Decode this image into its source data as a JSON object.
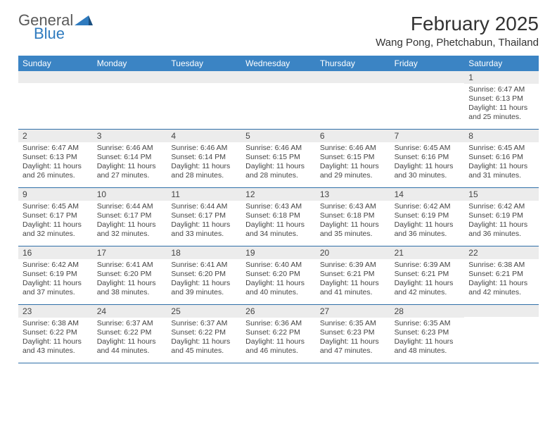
{
  "brand": {
    "general": "General",
    "blue": "Blue"
  },
  "logo_colors": {
    "triangle": "#2f7bbf",
    "accent": "#1a4f80"
  },
  "title": "February 2025",
  "location": "Wang Pong, Phetchabun, Thailand",
  "header_bg": "#3b84c4",
  "header_fg": "#ffffff",
  "row_divider": "#2f6fa8",
  "daynum_bg": "#ececec",
  "text_color": "#444444",
  "background": "#ffffff",
  "font_family": "Arial, Helvetica, sans-serif",
  "title_fontsize": 28,
  "location_fontsize": 15,
  "header_fontsize": 12,
  "body_fontsize": 10.5,
  "day_headers": [
    "Sunday",
    "Monday",
    "Tuesday",
    "Wednesday",
    "Thursday",
    "Friday",
    "Saturday"
  ],
  "weeks": [
    [
      null,
      null,
      null,
      null,
      null,
      null,
      {
        "n": "1",
        "sunrise": "Sunrise: 6:47 AM",
        "sunset": "Sunset: 6:13 PM",
        "daylight": "Daylight: 11 hours and 25 minutes."
      }
    ],
    [
      {
        "n": "2",
        "sunrise": "Sunrise: 6:47 AM",
        "sunset": "Sunset: 6:13 PM",
        "daylight": "Daylight: 11 hours and 26 minutes."
      },
      {
        "n": "3",
        "sunrise": "Sunrise: 6:46 AM",
        "sunset": "Sunset: 6:14 PM",
        "daylight": "Daylight: 11 hours and 27 minutes."
      },
      {
        "n": "4",
        "sunrise": "Sunrise: 6:46 AM",
        "sunset": "Sunset: 6:14 PM",
        "daylight": "Daylight: 11 hours and 28 minutes."
      },
      {
        "n": "5",
        "sunrise": "Sunrise: 6:46 AM",
        "sunset": "Sunset: 6:15 PM",
        "daylight": "Daylight: 11 hours and 28 minutes."
      },
      {
        "n": "6",
        "sunrise": "Sunrise: 6:46 AM",
        "sunset": "Sunset: 6:15 PM",
        "daylight": "Daylight: 11 hours and 29 minutes."
      },
      {
        "n": "7",
        "sunrise": "Sunrise: 6:45 AM",
        "sunset": "Sunset: 6:16 PM",
        "daylight": "Daylight: 11 hours and 30 minutes."
      },
      {
        "n": "8",
        "sunrise": "Sunrise: 6:45 AM",
        "sunset": "Sunset: 6:16 PM",
        "daylight": "Daylight: 11 hours and 31 minutes."
      }
    ],
    [
      {
        "n": "9",
        "sunrise": "Sunrise: 6:45 AM",
        "sunset": "Sunset: 6:17 PM",
        "daylight": "Daylight: 11 hours and 32 minutes."
      },
      {
        "n": "10",
        "sunrise": "Sunrise: 6:44 AM",
        "sunset": "Sunset: 6:17 PM",
        "daylight": "Daylight: 11 hours and 32 minutes."
      },
      {
        "n": "11",
        "sunrise": "Sunrise: 6:44 AM",
        "sunset": "Sunset: 6:17 PM",
        "daylight": "Daylight: 11 hours and 33 minutes."
      },
      {
        "n": "12",
        "sunrise": "Sunrise: 6:43 AM",
        "sunset": "Sunset: 6:18 PM",
        "daylight": "Daylight: 11 hours and 34 minutes."
      },
      {
        "n": "13",
        "sunrise": "Sunrise: 6:43 AM",
        "sunset": "Sunset: 6:18 PM",
        "daylight": "Daylight: 11 hours and 35 minutes."
      },
      {
        "n": "14",
        "sunrise": "Sunrise: 6:42 AM",
        "sunset": "Sunset: 6:19 PM",
        "daylight": "Daylight: 11 hours and 36 minutes."
      },
      {
        "n": "15",
        "sunrise": "Sunrise: 6:42 AM",
        "sunset": "Sunset: 6:19 PM",
        "daylight": "Daylight: 11 hours and 36 minutes."
      }
    ],
    [
      {
        "n": "16",
        "sunrise": "Sunrise: 6:42 AM",
        "sunset": "Sunset: 6:19 PM",
        "daylight": "Daylight: 11 hours and 37 minutes."
      },
      {
        "n": "17",
        "sunrise": "Sunrise: 6:41 AM",
        "sunset": "Sunset: 6:20 PM",
        "daylight": "Daylight: 11 hours and 38 minutes."
      },
      {
        "n": "18",
        "sunrise": "Sunrise: 6:41 AM",
        "sunset": "Sunset: 6:20 PM",
        "daylight": "Daylight: 11 hours and 39 minutes."
      },
      {
        "n": "19",
        "sunrise": "Sunrise: 6:40 AM",
        "sunset": "Sunset: 6:20 PM",
        "daylight": "Daylight: 11 hours and 40 minutes."
      },
      {
        "n": "20",
        "sunrise": "Sunrise: 6:39 AM",
        "sunset": "Sunset: 6:21 PM",
        "daylight": "Daylight: 11 hours and 41 minutes."
      },
      {
        "n": "21",
        "sunrise": "Sunrise: 6:39 AM",
        "sunset": "Sunset: 6:21 PM",
        "daylight": "Daylight: 11 hours and 42 minutes."
      },
      {
        "n": "22",
        "sunrise": "Sunrise: 6:38 AM",
        "sunset": "Sunset: 6:21 PM",
        "daylight": "Daylight: 11 hours and 42 minutes."
      }
    ],
    [
      {
        "n": "23",
        "sunrise": "Sunrise: 6:38 AM",
        "sunset": "Sunset: 6:22 PM",
        "daylight": "Daylight: 11 hours and 43 minutes."
      },
      {
        "n": "24",
        "sunrise": "Sunrise: 6:37 AM",
        "sunset": "Sunset: 6:22 PM",
        "daylight": "Daylight: 11 hours and 44 minutes."
      },
      {
        "n": "25",
        "sunrise": "Sunrise: 6:37 AM",
        "sunset": "Sunset: 6:22 PM",
        "daylight": "Daylight: 11 hours and 45 minutes."
      },
      {
        "n": "26",
        "sunrise": "Sunrise: 6:36 AM",
        "sunset": "Sunset: 6:22 PM",
        "daylight": "Daylight: 11 hours and 46 minutes."
      },
      {
        "n": "27",
        "sunrise": "Sunrise: 6:35 AM",
        "sunset": "Sunset: 6:23 PM",
        "daylight": "Daylight: 11 hours and 47 minutes."
      },
      {
        "n": "28",
        "sunrise": "Sunrise: 6:35 AM",
        "sunset": "Sunset: 6:23 PM",
        "daylight": "Daylight: 11 hours and 48 minutes."
      },
      null
    ]
  ]
}
